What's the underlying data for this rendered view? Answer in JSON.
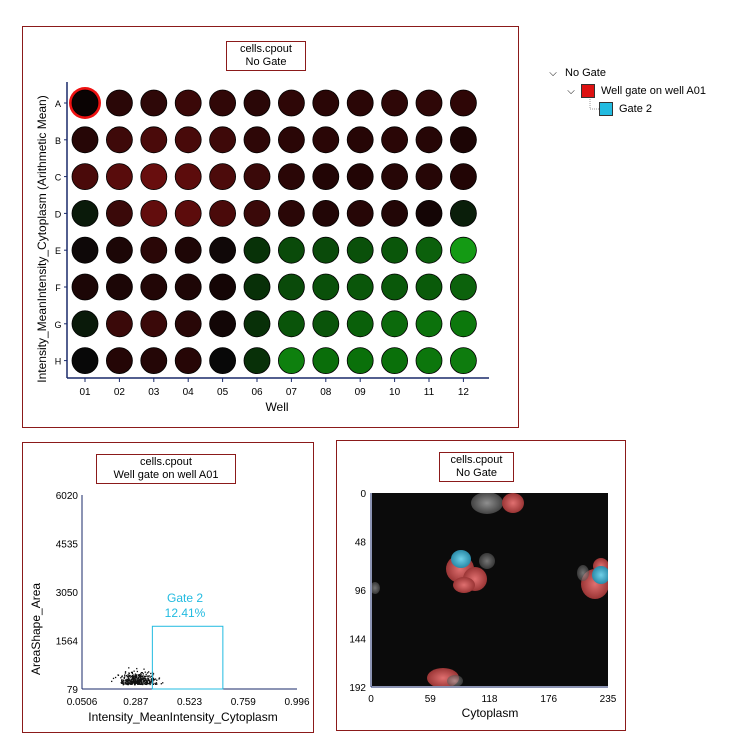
{
  "plate_panel": {
    "title_line1": "cells.cpout",
    "title_line2": "No Gate",
    "xlabel": "Well",
    "ylabel": "Intensity_MeanIntensity_Cytoplasm (Arithmetic Mean)",
    "rows": [
      "A",
      "B",
      "C",
      "D",
      "E",
      "F",
      "G",
      "H"
    ],
    "cols": [
      "01",
      "02",
      "03",
      "04",
      "05",
      "06",
      "07",
      "08",
      "09",
      "10",
      "11",
      "12"
    ],
    "selected_well": "A01",
    "wells": [
      [
        "#0a0303",
        "#2a0707",
        "#2e0808",
        "#3a0808",
        "#300707",
        "#2a0707",
        "#2e0707",
        "#2a0606",
        "#2a0606",
        "#2e0707",
        "#2e0707",
        "#2e0606"
      ],
      [
        "#260606",
        "#3e0909",
        "#4a0a0a",
        "#480a0a",
        "#3e0909",
        "#2e0707",
        "#2a0606",
        "#2a0606",
        "#260606",
        "#2a0606",
        "#260606",
        "#1c0505"
      ],
      [
        "#4a0a0a",
        "#580c0c",
        "#680e0e",
        "#5c0c0c",
        "#4c0b0b",
        "#3a0909",
        "#2a0606",
        "#220505",
        "#220505",
        "#260606",
        "#260606",
        "#220505"
      ],
      [
        "#0a1a0a",
        "#3a0909",
        "#620d0d",
        "#5c0c0c",
        "#4a0a0a",
        "#3a0909",
        "#2a0707",
        "#220606",
        "#260606",
        "#220606",
        "#140505",
        "#0a1e0a"
      ],
      [
        "#0e0808",
        "#1c0606",
        "#2a0707",
        "#1e0606",
        "#100808",
        "#083208",
        "#0a4a0a",
        "#0a4a0a",
        "#0a500a",
        "#0a560a",
        "#0c600c",
        "#149a14"
      ],
      [
        "#1c0606",
        "#1c0606",
        "#220606",
        "#1e0606",
        "#140505",
        "#083008",
        "#0a4a0a",
        "#0a500a",
        "#0a560a",
        "#0a580a",
        "#0a5a0a",
        "#0c620c"
      ],
      [
        "#0a1a0a",
        "#3a0909",
        "#3a0909",
        "#280707",
        "#120606",
        "#083008",
        "#0a540a",
        "#0a540a",
        "#0a600a",
        "#0c6a0c",
        "#0c720c",
        "#0c780c"
      ],
      [
        "#080808",
        "#240606",
        "#240606",
        "#260606",
        "#080808",
        "#083008",
        "#0e800e",
        "#0a6e0a",
        "#0a700a",
        "#0a700a",
        "#0c760c",
        "#0e7c0e"
      ]
    ]
  },
  "gate_tree": {
    "root": {
      "label": "No Gate"
    },
    "well_gate": {
      "label": "Well gate on well A01",
      "color": "#dd1111"
    },
    "gate2": {
      "label": "Gate 2",
      "color": "#22bbe0"
    }
  },
  "scatter_panel": {
    "title_line1": "cells.cpout",
    "title_line2": "Well gate on well A01",
    "xlabel": "Intensity_MeanIntensity_Cytoplasm",
    "ylabel": "AreaShape_Area",
    "xticks": [
      "0.0506",
      "0.287",
      "0.523",
      "0.759",
      "0.996"
    ],
    "yticks": [
      "79",
      "1564",
      "3050",
      "4535",
      "6020"
    ],
    "gate_label": "Gate 2",
    "gate_percent": "12.41%",
    "gate_color": "#22bbe0",
    "chart_data": {
      "type": "scatter",
      "xlabel": "Intensity_MeanIntensity_Cytoplasm",
      "ylabel": "AreaShape_Area",
      "xlim": [
        0.0506,
        0.996
      ],
      "ylim": [
        79,
        6020
      ],
      "gate": {
        "name": "Gate 2",
        "x": [
          0.36,
          0.67
        ],
        "y": [
          79,
          2000
        ]
      },
      "cluster": {
        "x_center": 0.3,
        "x_spread": 0.09,
        "y_center": 380,
        "y_spread": 260,
        "count": 380
      }
    }
  },
  "image_panel": {
    "title_line1": "cells.cpout",
    "title_line2": "No Gate",
    "xlabel": "Cytoplasm",
    "xticks": [
      "0",
      "59",
      "118",
      "176",
      "235"
    ],
    "yticks": [
      "0",
      "48",
      "96",
      "144",
      "192"
    ]
  }
}
